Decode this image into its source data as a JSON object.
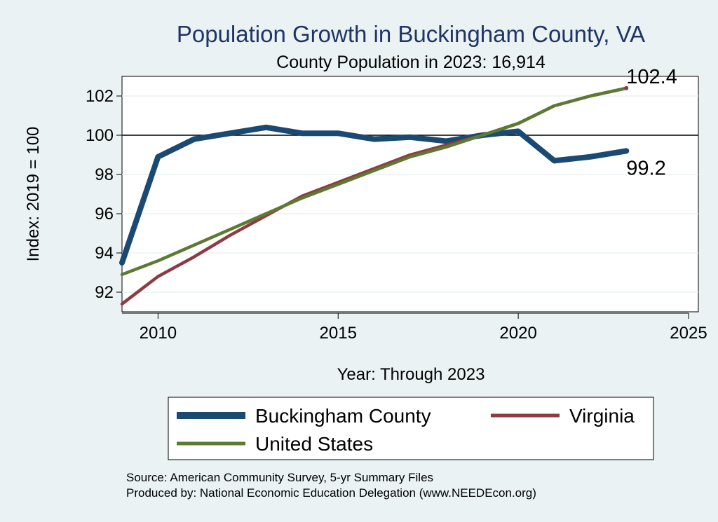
{
  "chart_data": {
    "type": "line",
    "title": "Population Growth in Buckingham County, VA",
    "subtitle": "County Population in 2023: 16,914",
    "xlabel": "Year: Through 2023",
    "ylabel": "Index: 2019 = 100",
    "xlim": [
      2009,
      2025
    ],
    "ylim": [
      91,
      103
    ],
    "x_ticks": [
      2010,
      2015,
      2020,
      2025
    ],
    "y_ticks": [
      92,
      94,
      96,
      98,
      100,
      102
    ],
    "reference_line": 100,
    "grid": true,
    "legend_position": "bottom",
    "x": [
      2009,
      2010,
      2011,
      2012,
      2013,
      2014,
      2015,
      2016,
      2017,
      2018,
      2019,
      2020,
      2021,
      2022,
      2023
    ],
    "series": [
      {
        "name": "Buckingham  County",
        "color": "#1a4a72",
        "values": [
          93.5,
          98.9,
          99.8,
          100.1,
          100.4,
          100.1,
          100.1,
          99.8,
          99.9,
          99.7,
          100.0,
          100.2,
          98.7,
          98.9,
          99.2
        ]
      },
      {
        "name": "Virginia",
        "color": "#8f3a43",
        "values": [
          91.4,
          92.8,
          93.8,
          94.9,
          95.9,
          96.9,
          97.6,
          98.3,
          99.0,
          99.5,
          100.0,
          100.6,
          101.5,
          102.0,
          102.4
        ]
      },
      {
        "name": "United States",
        "color": "#5c7a33",
        "values": [
          92.9,
          93.6,
          94.4,
          95.2,
          96.0,
          96.8,
          97.5,
          98.2,
          98.9,
          99.4,
          100.0,
          100.6,
          101.5,
          102.0,
          102.4
        ]
      }
    ],
    "end_labels": [
      {
        "series": "Virginia",
        "text": "102.4"
      },
      {
        "series": "Buckingham  County",
        "text": "99.2"
      }
    ]
  },
  "source": {
    "line1": "Source: American Community Survey, 5-yr Summary Files",
    "line2": "Produced by: National Economic Education Delegation (www.NEEDEcon.org)"
  }
}
